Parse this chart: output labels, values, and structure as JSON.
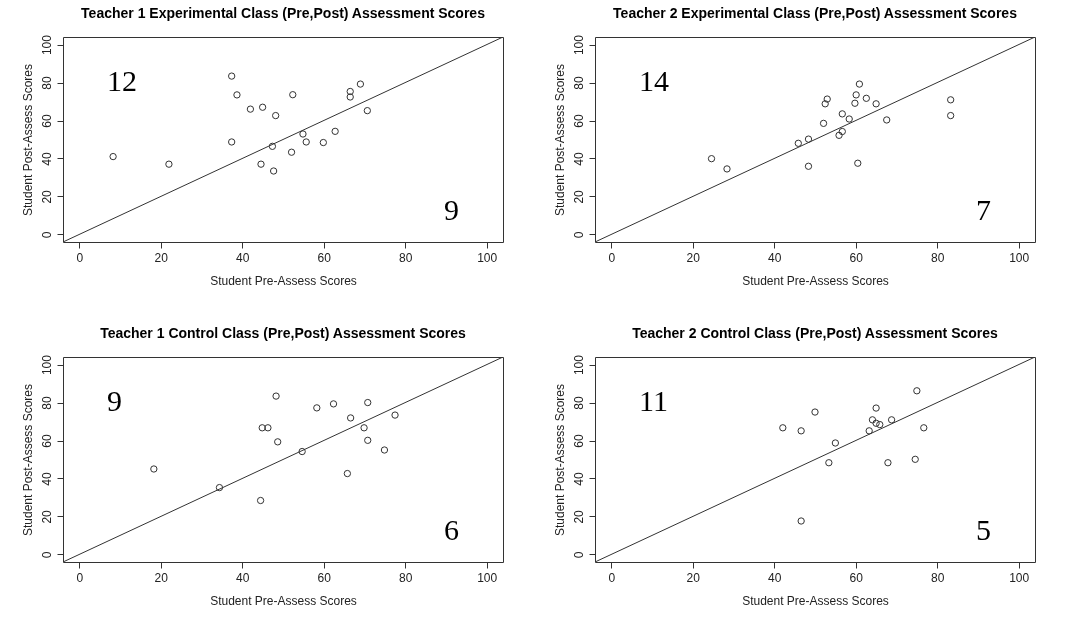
{
  "chart_data": [
    {
      "type": "scatter",
      "title": "Teacher 1 Experimental Class (Pre,Post) Assessment Scores",
      "xlabel": "Student Pre-Assess Scores",
      "ylabel": "Student Post-Assess Scores",
      "xlim": [
        -4,
        104
      ],
      "ylim": [
        -4,
        104
      ],
      "xticks": [
        0,
        20,
        40,
        60,
        80,
        100
      ],
      "yticks": [
        0,
        20,
        40,
        60,
        80,
        100
      ],
      "grid": false,
      "annotations": [
        "12",
        "9"
      ],
      "series": [
        {
          "marker": "circle",
          "color": "#333333",
          "x": [
            8.3,
            22,
            37.4,
            38.7,
            37.4,
            42,
            45,
            48.2,
            44.6,
            47.4,
            47.7,
            52.4,
            52.1,
            54.9,
            55.7,
            59.9,
            62.8,
            66.5,
            66.5,
            69,
            70.7
          ],
          "values": [
            41,
            37,
            83.4,
            73.5,
            48.7,
            66,
            67,
            62.6,
            37,
            46.4,
            33.4,
            73.6,
            43.3,
            52.9,
            48.7,
            48.4,
            54.3,
            75.3,
            72.4,
            79.2,
            65.2
          ]
        },
        {
          "type": "line",
          "color": "#333333",
          "x": [
            -4,
            104
          ],
          "values": [
            -4,
            104
          ]
        }
      ]
    },
    {
      "type": "scatter",
      "title": "Teacher 2 Experimental Class (Pre,Post) Assessment Scores",
      "xlabel": "Student Pre-Assess Scores",
      "ylabel": "Student Post-Assess Scores",
      "xlim": [
        -4,
        104
      ],
      "ylim": [
        -4,
        104
      ],
      "xticks": [
        0,
        20,
        40,
        60,
        80,
        100
      ],
      "yticks": [
        0,
        20,
        40,
        60,
        80,
        100
      ],
      "grid": false,
      "annotations": [
        "14",
        "7"
      ],
      "series": [
        {
          "marker": "circle",
          "color": "#333333",
          "x": [
            24.6,
            28.4,
            45.9,
            48.4,
            48.4,
            52.1,
            52.5,
            53,
            55.9,
            56.7,
            56.7,
            58.4,
            59.8,
            60.1,
            60.9,
            60.5,
            62.6,
            65,
            67.6,
            83.3,
            83.3
          ],
          "values": [
            39.9,
            34.5,
            48,
            50.2,
            35.9,
            58.5,
            68.8,
            71.3,
            52.2,
            54.2,
            63.5,
            60.8,
            69.1,
            73.5,
            79.2,
            37.5,
            71.7,
            68.8,
            60.3,
            70.9,
            62.6
          ]
        },
        {
          "type": "line",
          "color": "#333333",
          "x": [
            -4,
            104
          ],
          "values": [
            -4,
            104
          ]
        }
      ]
    },
    {
      "type": "scatter",
      "title": "Teacher 1 Control Class (Pre,Post) Assessment Scores",
      "xlabel": "Student Pre-Assess Scores",
      "ylabel": "Student Post-Assess Scores",
      "xlim": [
        -4,
        104
      ],
      "ylim": [
        -4,
        104
      ],
      "xticks": [
        0,
        20,
        40,
        60,
        80,
        100
      ],
      "yticks": [
        0,
        20,
        40,
        60,
        80,
        100
      ],
      "grid": false,
      "annotations": [
        "9",
        "6"
      ],
      "series": [
        {
          "marker": "circle",
          "color": "#333333",
          "x": [
            18.3,
            34.4,
            44.5,
            44.9,
            46.3,
            48.3,
            48.7,
            54.7,
            58.3,
            62.4,
            66.6,
            65.8,
            69.9,
            70.8,
            70.8,
            74.9,
            77.5
          ],
          "values": [
            45,
            35.2,
            28.4,
            66.7,
            66.7,
            83.4,
            59.3,
            54.2,
            77.2,
            79.3,
            71.9,
            42.6,
            66.7,
            80,
            60.1,
            55,
            73.4
          ]
        },
        {
          "type": "line",
          "color": "#333333",
          "x": [
            -4,
            104
          ],
          "values": [
            -4,
            104
          ]
        }
      ]
    },
    {
      "type": "scatter",
      "title": "Teacher 2 Control Class (Pre,Post) Assessment Scores",
      "xlabel": "Student Pre-Assess Scores",
      "ylabel": "Student Post-Assess Scores",
      "xlim": [
        -4,
        104
      ],
      "ylim": [
        -4,
        104
      ],
      "xticks": [
        0,
        20,
        40,
        60,
        80,
        100
      ],
      "yticks": [
        0,
        20,
        40,
        60,
        80,
        100
      ],
      "grid": false,
      "annotations": [
        "11",
        "5"
      ],
      "series": [
        {
          "marker": "circle",
          "color": "#333333",
          "x": [
            42.1,
            46.6,
            46.6,
            50,
            53.4,
            55,
            63.3,
            64.1,
            65,
            65,
            65.9,
            68.8,
            67.9,
            74.6,
            75,
            76.7
          ],
          "values": [
            66.7,
            65.1,
            17.6,
            75,
            48.3,
            58.7,
            65.1,
            70.9,
            77.1,
            69.1,
            68.4,
            70.9,
            48.3,
            50.1,
            86.2,
            66.7
          ]
        },
        {
          "type": "line",
          "color": "#333333",
          "x": [
            -4,
            104
          ],
          "values": [
            -4,
            104
          ]
        }
      ]
    }
  ]
}
